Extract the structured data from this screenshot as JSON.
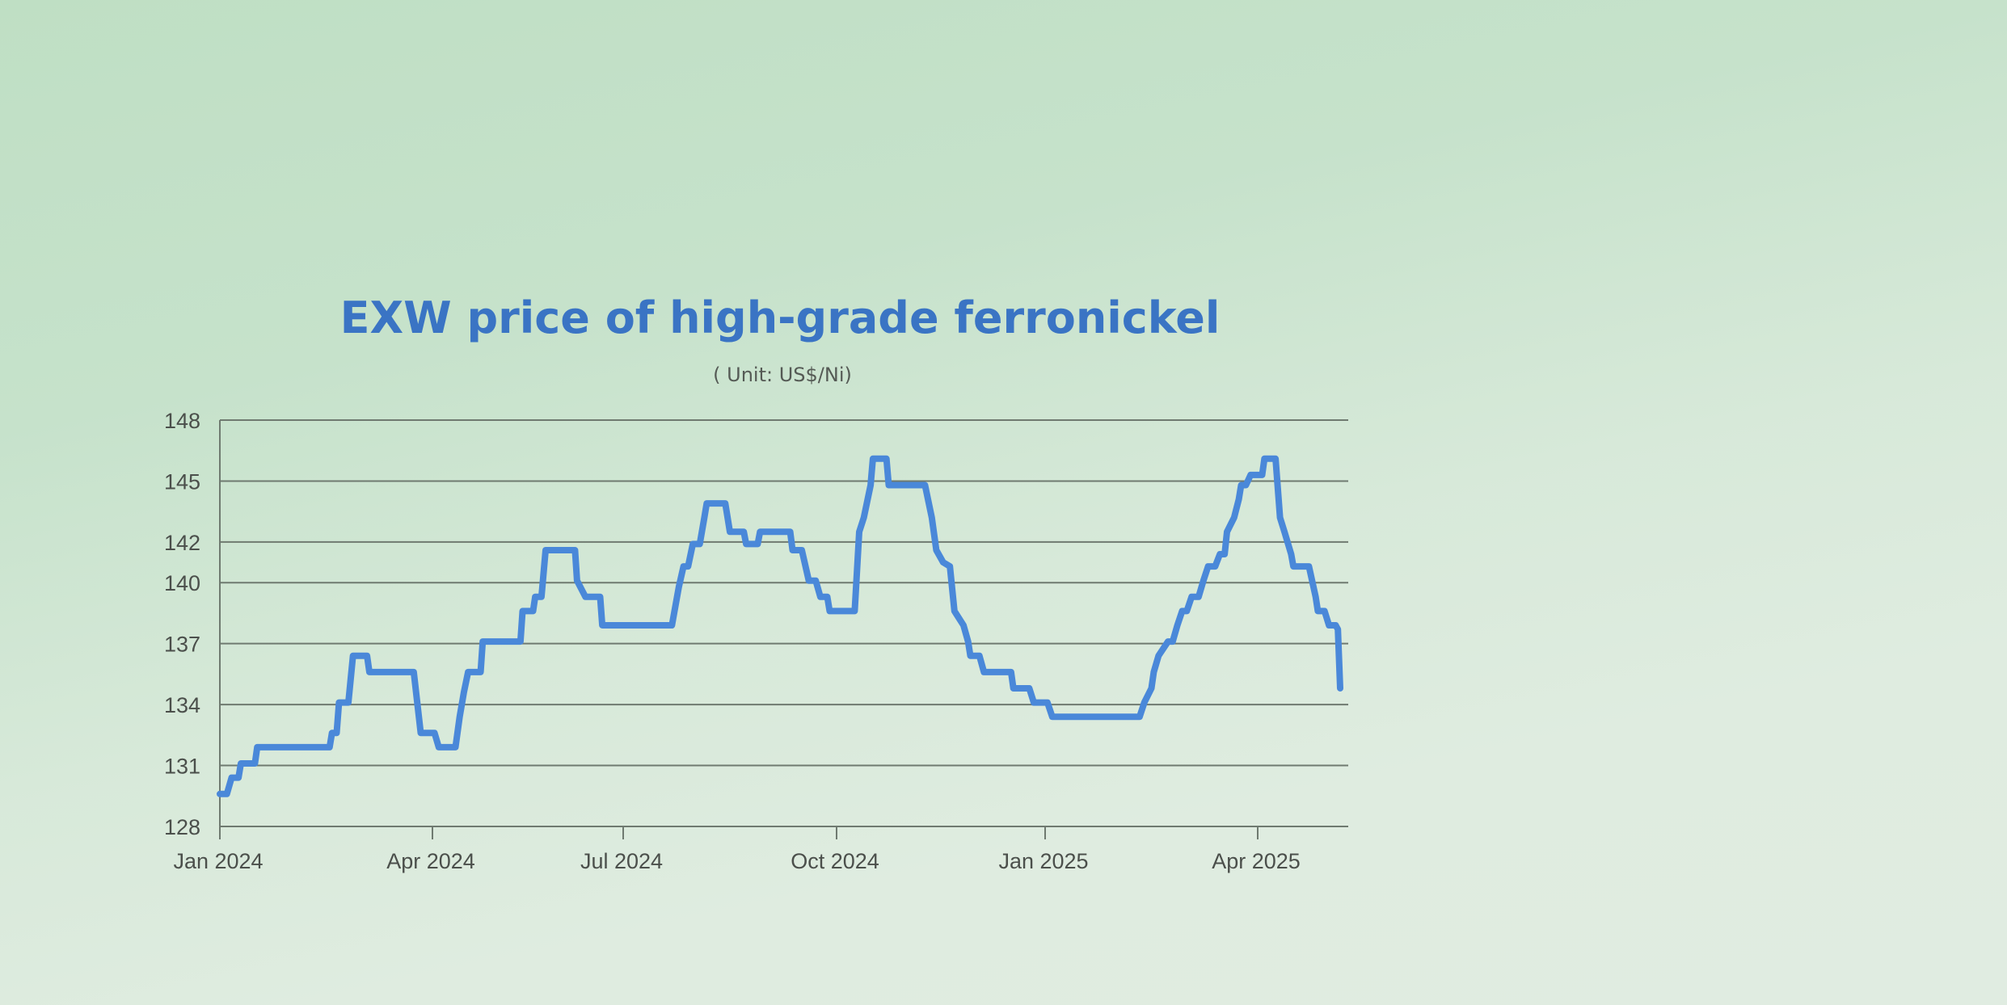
{
  "chart_data": {
    "type": "line",
    "title": "EXW price of high-grade ferronickel",
    "subtitle": "( Unit: US$/Ni)",
    "xlabel": "",
    "ylabel": "",
    "ylim": [
      128,
      148
    ],
    "yticks": [
      "128",
      "131",
      "134",
      "137",
      "140",
      "142",
      "145",
      "148"
    ],
    "ytick_values": [
      128,
      131,
      134,
      137,
      140,
      142,
      145,
      148
    ],
    "xlim": [
      "2024-01-01",
      "2025-05-08"
    ],
    "xticks": [
      {
        "label": "Jan 2024",
        "date": "2024-01-01"
      },
      {
        "label": "Apr 2024",
        "date": "2024-04-01"
      },
      {
        "label": "Jul 2024",
        "date": "2024-07-01"
      },
      {
        "label": "Oct 2024",
        "date": "2024-10-01"
      },
      {
        "label": "Jan 2025",
        "date": "2025-01-01"
      },
      {
        "label": "Apr 2025",
        "date": "2025-04-01"
      }
    ],
    "grid": true,
    "colors": {
      "line": "#4a88d9",
      "title": "#3a74c4",
      "grid": "#6f7a70"
    },
    "series": [
      {
        "points": [
          [
            "2024-01-01",
            129.6
          ],
          [
            "2024-01-04",
            129.6
          ],
          [
            "2024-01-06",
            130.4
          ],
          [
            "2024-01-09",
            130.4
          ],
          [
            "2024-01-10",
            131.1
          ],
          [
            "2024-01-16",
            131.1
          ],
          [
            "2024-01-17",
            131.9
          ],
          [
            "2024-02-17",
            131.9
          ],
          [
            "2024-02-18",
            132.6
          ],
          [
            "2024-02-20",
            132.6
          ],
          [
            "2024-02-21",
            134.1
          ],
          [
            "2024-02-25",
            134.1
          ],
          [
            "2024-02-27",
            136.4
          ],
          [
            "2024-03-04",
            136.4
          ],
          [
            "2024-03-05",
            135.6
          ],
          [
            "2024-03-24",
            135.6
          ],
          [
            "2024-03-27",
            132.6
          ],
          [
            "2024-04-02",
            132.6
          ],
          [
            "2024-04-04",
            131.9
          ],
          [
            "2024-04-12",
            131.9
          ],
          [
            "2024-04-14",
            133.4
          ],
          [
            "2024-04-16",
            134.6
          ],
          [
            "2024-04-18",
            135.6
          ],
          [
            "2024-04-24",
            135.6
          ],
          [
            "2024-04-25",
            137.1
          ],
          [
            "2024-05-13",
            137.1
          ],
          [
            "2024-05-14",
            138.6
          ],
          [
            "2024-05-19",
            138.6
          ],
          [
            "2024-05-20",
            139.3
          ],
          [
            "2024-05-23",
            139.3
          ],
          [
            "2024-05-25",
            141.6
          ],
          [
            "2024-06-08",
            141.6
          ],
          [
            "2024-06-09",
            140.1
          ],
          [
            "2024-06-13",
            139.3
          ],
          [
            "2024-06-20",
            139.3
          ],
          [
            "2024-06-21",
            137.9
          ],
          [
            "2024-07-22",
            137.9
          ],
          [
            "2024-07-25",
            139.8
          ],
          [
            "2024-07-27",
            140.8
          ],
          [
            "2024-07-29",
            140.8
          ],
          [
            "2024-07-31",
            141.9
          ],
          [
            "2024-08-03",
            141.9
          ],
          [
            "2024-08-05",
            143.2
          ],
          [
            "2024-08-06",
            143.9
          ],
          [
            "2024-08-14",
            143.9
          ],
          [
            "2024-08-16",
            142.5
          ],
          [
            "2024-08-22",
            142.5
          ],
          [
            "2024-08-23",
            141.9
          ],
          [
            "2024-08-28",
            141.9
          ],
          [
            "2024-08-29",
            142.5
          ],
          [
            "2024-09-11",
            142.5
          ],
          [
            "2024-09-12",
            141.6
          ],
          [
            "2024-09-16",
            141.6
          ],
          [
            "2024-09-19",
            140.1
          ],
          [
            "2024-09-22",
            140.1
          ],
          [
            "2024-09-24",
            139.3
          ],
          [
            "2024-09-27",
            139.3
          ],
          [
            "2024-09-28",
            138.6
          ],
          [
            "2024-10-09",
            138.6
          ],
          [
            "2024-10-11",
            142.5
          ],
          [
            "2024-10-13",
            143.2
          ],
          [
            "2024-10-16",
            144.8
          ],
          [
            "2024-10-17",
            146.1
          ],
          [
            "2024-10-23",
            146.1
          ],
          [
            "2024-10-24",
            144.8
          ],
          [
            "2024-11-09",
            144.8
          ],
          [
            "2024-11-12",
            143.2
          ],
          [
            "2024-11-14",
            141.6
          ],
          [
            "2024-11-17",
            141.0
          ],
          [
            "2024-11-20",
            140.8
          ],
          [
            "2024-11-22",
            138.6
          ],
          [
            "2024-11-26",
            137.9
          ],
          [
            "2024-11-28",
            137.1
          ],
          [
            "2024-11-29",
            136.4
          ],
          [
            "2024-12-03",
            136.4
          ],
          [
            "2024-12-05",
            135.6
          ],
          [
            "2024-12-17",
            135.6
          ],
          [
            "2024-12-18",
            134.8
          ],
          [
            "2024-12-25",
            134.8
          ],
          [
            "2024-12-27",
            134.1
          ],
          [
            "2025-01-02",
            134.1
          ],
          [
            "2025-01-04",
            133.4
          ],
          [
            "2025-02-10",
            133.4
          ],
          [
            "2025-02-12",
            134.1
          ],
          [
            "2025-02-15",
            134.8
          ],
          [
            "2025-02-16",
            135.6
          ],
          [
            "2025-02-18",
            136.4
          ],
          [
            "2025-02-22",
            137.1
          ],
          [
            "2025-02-24",
            137.1
          ],
          [
            "2025-02-26",
            137.9
          ],
          [
            "2025-02-28",
            138.6
          ],
          [
            "2025-03-02",
            138.6
          ],
          [
            "2025-03-04",
            139.3
          ],
          [
            "2025-03-07",
            139.3
          ],
          [
            "2025-03-09",
            140.1
          ],
          [
            "2025-03-11",
            140.8
          ],
          [
            "2025-03-14",
            140.8
          ],
          [
            "2025-03-16",
            141.4
          ],
          [
            "2025-03-18",
            141.4
          ],
          [
            "2025-03-19",
            142.5
          ],
          [
            "2025-03-22",
            143.2
          ],
          [
            "2025-03-24",
            144.1
          ],
          [
            "2025-03-25",
            144.8
          ],
          [
            "2025-03-27",
            144.8
          ],
          [
            "2025-03-29",
            145.3
          ],
          [
            "2025-04-03",
            145.3
          ],
          [
            "2025-04-04",
            146.1
          ],
          [
            "2025-04-09",
            146.1
          ],
          [
            "2025-04-11",
            143.2
          ],
          [
            "2025-04-13",
            142.5
          ],
          [
            "2025-04-16",
            141.4
          ],
          [
            "2025-04-17",
            140.8
          ],
          [
            "2025-04-24",
            140.8
          ],
          [
            "2025-04-27",
            139.3
          ],
          [
            "2025-04-28",
            138.6
          ],
          [
            "2025-05-01",
            138.6
          ],
          [
            "2025-05-03",
            137.9
          ],
          [
            "2025-05-06",
            137.9
          ],
          [
            "2025-05-07",
            137.7
          ],
          [
            "2025-05-08",
            134.8
          ]
        ]
      }
    ]
  }
}
